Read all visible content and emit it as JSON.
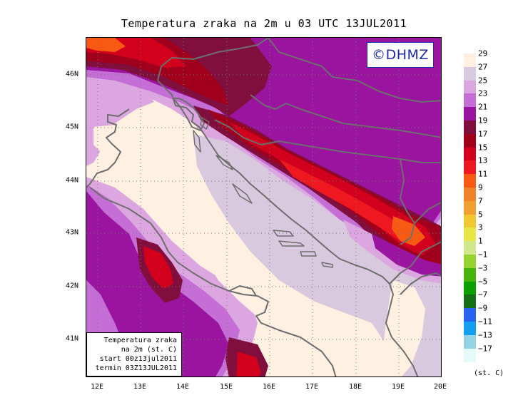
{
  "title": "Temperatura zraka na 2m u 03 UTC 13JUL2011",
  "logo": "©DHMZ",
  "info_box": {
    "line1": "Temperatura zraka",
    "line2": "na 2m (st. C)",
    "line3": "start 00z13jul2011",
    "line4": "termin 03Z13JUL2011"
  },
  "lat_labels": [
    "46N",
    "45N",
    "44N",
    "43N",
    "42N",
    "41N"
  ],
  "lon_labels": [
    "12E",
    "13E",
    "14E",
    "15E",
    "16E",
    "17E",
    "18E",
    "19E",
    "20E"
  ],
  "legend": {
    "units": "(st. C)",
    "colors": [
      "#fff0e1",
      "#d9c9de",
      "#dca6e0",
      "#c56fd6",
      "#9b14a0",
      "#800f3d",
      "#a0001c",
      "#d2001c",
      "#f01820",
      "#f85a14",
      "#f08228",
      "#f0a030",
      "#f0c830",
      "#e6e646",
      "#d2e68c",
      "#96d232",
      "#46b40a",
      "#0aa000",
      "#146e14",
      "#2864f0",
      "#14a0f0",
      "#96d2e6",
      "#e6fafa"
    ],
    "labels": [
      "29",
      "27",
      "25",
      "23",
      "21",
      "19",
      "17",
      "15",
      "13",
      "11",
      "9",
      "7",
      "5",
      "3",
      "1",
      "−1",
      "−3",
      "−5",
      "−7",
      "−9",
      "−11",
      "−13",
      "−17"
    ]
  },
  "map_colors": {
    "t29": "#fff0e1",
    "t27": "#d9c9de",
    "t25": "#dca6e0",
    "t23": "#c56fd6",
    "t21": "#9b14a0",
    "t19": "#800f3d",
    "t17": "#a0001c",
    "t15": "#d2001c",
    "t13": "#f01820",
    "t11": "#f85a14",
    "border": "#6e6e6e"
  }
}
